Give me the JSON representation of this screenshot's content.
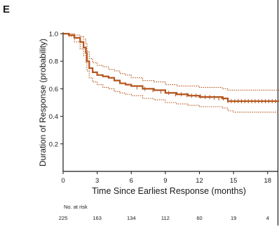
{
  "panel_label": "E",
  "colors": {
    "line": "#b5541c",
    "axis": "#1a1a1a",
    "frame": "#000000"
  },
  "chart_data": {
    "type": "line",
    "title": "",
    "xlabel": "Time Since Earliest Response (months)",
    "ylabel": "Duration of Response (probability)",
    "xlim": [
      0,
      19
    ],
    "ylim": [
      0,
      1.0
    ],
    "x_ticks": [
      0,
      3,
      6,
      9,
      12,
      15,
      18
    ],
    "y_ticks": [
      0.2,
      0.4,
      0.6,
      0.8,
      1.0
    ],
    "series": [
      {
        "role": "estimate",
        "style": "solid",
        "x": [
          0,
          0.5,
          1.0,
          1.5,
          1.8,
          2.0,
          2.1,
          2.3,
          2.6,
          3.0,
          3.5,
          4.0,
          4.5,
          5.0,
          5.5,
          6.0,
          7.0,
          8.0,
          9.0,
          10.0,
          11.0,
          12.0,
          13.0,
          14.0,
          14.5,
          15.0,
          16.0,
          17.0,
          18.0,
          19.0
        ],
        "y": [
          1.0,
          0.99,
          0.97,
          0.94,
          0.9,
          0.86,
          0.8,
          0.75,
          0.72,
          0.7,
          0.69,
          0.68,
          0.66,
          0.64,
          0.63,
          0.62,
          0.6,
          0.59,
          0.57,
          0.56,
          0.55,
          0.54,
          0.54,
          0.53,
          0.51,
          0.51,
          0.51,
          0.51,
          0.51,
          0.51
        ]
      },
      {
        "role": "upper confidence limit",
        "style": "dotted",
        "x": [
          0,
          0.5,
          1.0,
          1.5,
          1.8,
          2.0,
          2.1,
          2.3,
          2.6,
          3.0,
          3.5,
          4.0,
          4.5,
          5.0,
          5.5,
          6.0,
          7.0,
          8.0,
          9.0,
          10.0,
          11.0,
          12.0,
          13.0,
          14.0,
          14.5,
          15.0,
          16.0,
          17.0,
          18.0,
          19.0
        ],
        "y": [
          1.0,
          1.0,
          0.99,
          0.98,
          0.96,
          0.93,
          0.87,
          0.82,
          0.79,
          0.77,
          0.76,
          0.74,
          0.73,
          0.71,
          0.7,
          0.68,
          0.66,
          0.65,
          0.63,
          0.62,
          0.62,
          0.61,
          0.61,
          0.6,
          0.59,
          0.59,
          0.59,
          0.59,
          0.59,
          0.59
        ]
      },
      {
        "role": "lower confidence limit",
        "style": "dotted",
        "x": [
          0,
          0.5,
          1.0,
          1.5,
          1.8,
          2.0,
          2.1,
          2.3,
          2.6,
          3.0,
          3.5,
          4.0,
          4.5,
          5.0,
          5.5,
          6.0,
          7.0,
          8.0,
          9.0,
          10.0,
          11.0,
          12.0,
          13.0,
          14.0,
          14.5,
          15.0,
          16.0,
          17.0,
          18.0,
          19.0
        ],
        "y": [
          1.0,
          0.98,
          0.94,
          0.89,
          0.84,
          0.79,
          0.73,
          0.68,
          0.65,
          0.63,
          0.61,
          0.6,
          0.58,
          0.57,
          0.56,
          0.55,
          0.53,
          0.52,
          0.5,
          0.49,
          0.48,
          0.47,
          0.47,
          0.46,
          0.44,
          0.43,
          0.43,
          0.43,
          0.43,
          0.43
        ]
      }
    ],
    "censor_marks": {
      "x": [
        6.5,
        7.2,
        7.9,
        8.6,
        9.3,
        9.9,
        10.4,
        10.9,
        11.3,
        11.7,
        12.1,
        12.5,
        12.9,
        13.3,
        13.7,
        14.1,
        14.5,
        14.8,
        15.1,
        15.4,
        15.7,
        16.0,
        16.3,
        16.6,
        16.9,
        17.2,
        17.5,
        17.8,
        18.1,
        18.4,
        18.7
      ],
      "y": [
        0.61,
        0.6,
        0.59,
        0.58,
        0.57,
        0.56,
        0.56,
        0.555,
        0.55,
        0.55,
        0.545,
        0.54,
        0.54,
        0.535,
        0.53,
        0.53,
        0.51,
        0.51,
        0.51,
        0.51,
        0.51,
        0.51,
        0.51,
        0.51,
        0.51,
        0.51,
        0.51,
        0.51,
        0.51,
        0.51,
        0.51
      ]
    },
    "risk_table": {
      "label": "No. at risk",
      "times": [
        0,
        3,
        6,
        9,
        12,
        15,
        18
      ],
      "counts": [
        "225",
        "163",
        "134",
        "112",
        "60",
        "19",
        "4"
      ]
    }
  }
}
